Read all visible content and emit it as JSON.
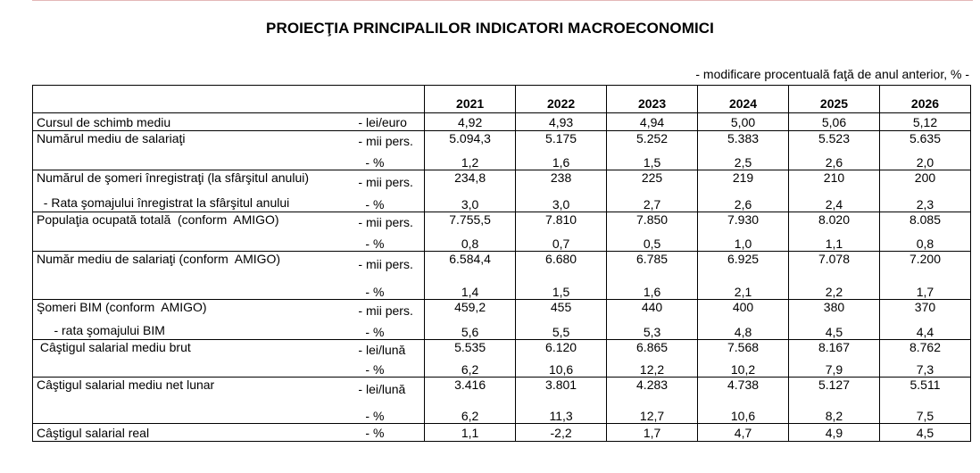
{
  "title": "PROIECŢIA PRINCIPALILOR INDICATORI MACROECONOMICI",
  "note": "- modificare procentuală faţă de anul anterior, % -",
  "years": [
    "2021",
    "2022",
    "2023",
    "2024",
    "2025",
    "2026"
  ],
  "groups": [
    {
      "rows": [
        {
          "label": "Cursul de schimb mediu",
          "unit": "- lei/euro",
          "values": [
            "4,92",
            "4,93",
            "4,94",
            "5,00",
            "5,06",
            "5,12"
          ]
        }
      ]
    },
    {
      "rows": [
        {
          "label": "Numărul mediu de salariaţi",
          "unit": "- mii pers.",
          "values": [
            "5.094,3",
            "5.175",
            "5.252",
            "5.383",
            "5.523",
            "5.635"
          ]
        },
        {
          "label": "",
          "unit": "- %",
          "values": [
            "1,2",
            "1,6",
            "1,5",
            "2,5",
            "2,6",
            "2,0"
          ]
        }
      ]
    },
    {
      "rows": [
        {
          "label": "Numărul de şomeri înregistraţi (la sfârşitul anului)",
          "unit": "- mii pers.",
          "values": [
            "234,8",
            "238",
            "225",
            "219",
            "210",
            "200"
          ]
        },
        {
          "label": "  - Rata şomajului înregistrat la sfârşitul anului",
          "unit": "- %",
          "values": [
            "3,0",
            "3,0",
            "2,7",
            "2,6",
            "2,4",
            "2,3"
          ]
        }
      ]
    },
    {
      "rows": [
        {
          "label": "Populaţia ocupată totală  (conform  AMIGO)",
          "unit": "- mii pers.",
          "values": [
            "7.755,5",
            "7.810",
            "7.850",
            "7.930",
            "8.020",
            "8.085"
          ]
        },
        {
          "label": "",
          "unit": "- %",
          "values": [
            "0,8",
            "0,7",
            "0,5",
            "1,0",
            "1,1",
            "0,8"
          ]
        }
      ]
    },
    {
      "rows": [
        {
          "label": "Număr mediu de salariaţi (conform  AMIGO)",
          "unit": "- mii pers.",
          "values": [
            "6.584,4",
            "6.680",
            "6.785",
            "6.925",
            "7.078",
            "7.200"
          ]
        },
        {
          "label": "",
          "unit": "- %",
          "values": [
            "1,4",
            "1,5",
            "1,6",
            "2,1",
            "2,2",
            "1,7"
          ]
        }
      ]
    },
    {
      "rows": [
        {
          "label": "Şomeri BIM (conform  AMIGO)",
          "unit": "- mii pers.",
          "values": [
            "459,2",
            "455",
            "440",
            "400",
            "380",
            "370"
          ]
        },
        {
          "label": "     - rata şomajului BIM",
          "unit": "- %",
          "values": [
            "5,6",
            "5,5",
            "5,3",
            "4,8",
            "4,5",
            "4,4"
          ]
        }
      ]
    },
    {
      "rows": [
        {
          "label": " Câştigul salarial mediu brut",
          "unit": "- lei/lună",
          "values": [
            "5.535",
            "6.120",
            "6.865",
            "7.568",
            "8.167",
            "8.762"
          ]
        },
        {
          "label": "",
          "unit": "- %",
          "values": [
            "6,2",
            "10,6",
            "12,2",
            "10,2",
            "7,9",
            "7,3"
          ]
        }
      ]
    },
    {
      "rows": [
        {
          "label": "Câştigul salarial mediu net lunar",
          "unit": "- lei/lună",
          "values": [
            "3.416",
            "3.801",
            "4.283",
            "4.738",
            "5.127",
            "5.511"
          ]
        },
        {
          "label": "",
          "unit": "- %",
          "values": [
            "6,2",
            "11,3",
            "12,7",
            "10,6",
            "8,2",
            "7,5"
          ]
        }
      ]
    },
    {
      "rows": [
        {
          "label": "Câştigul salarial real",
          "unit": "- %",
          "values": [
            "1,1",
            "-2,2",
            "1,7",
            "4,7",
            "4,9",
            "4,5"
          ]
        }
      ]
    }
  ]
}
